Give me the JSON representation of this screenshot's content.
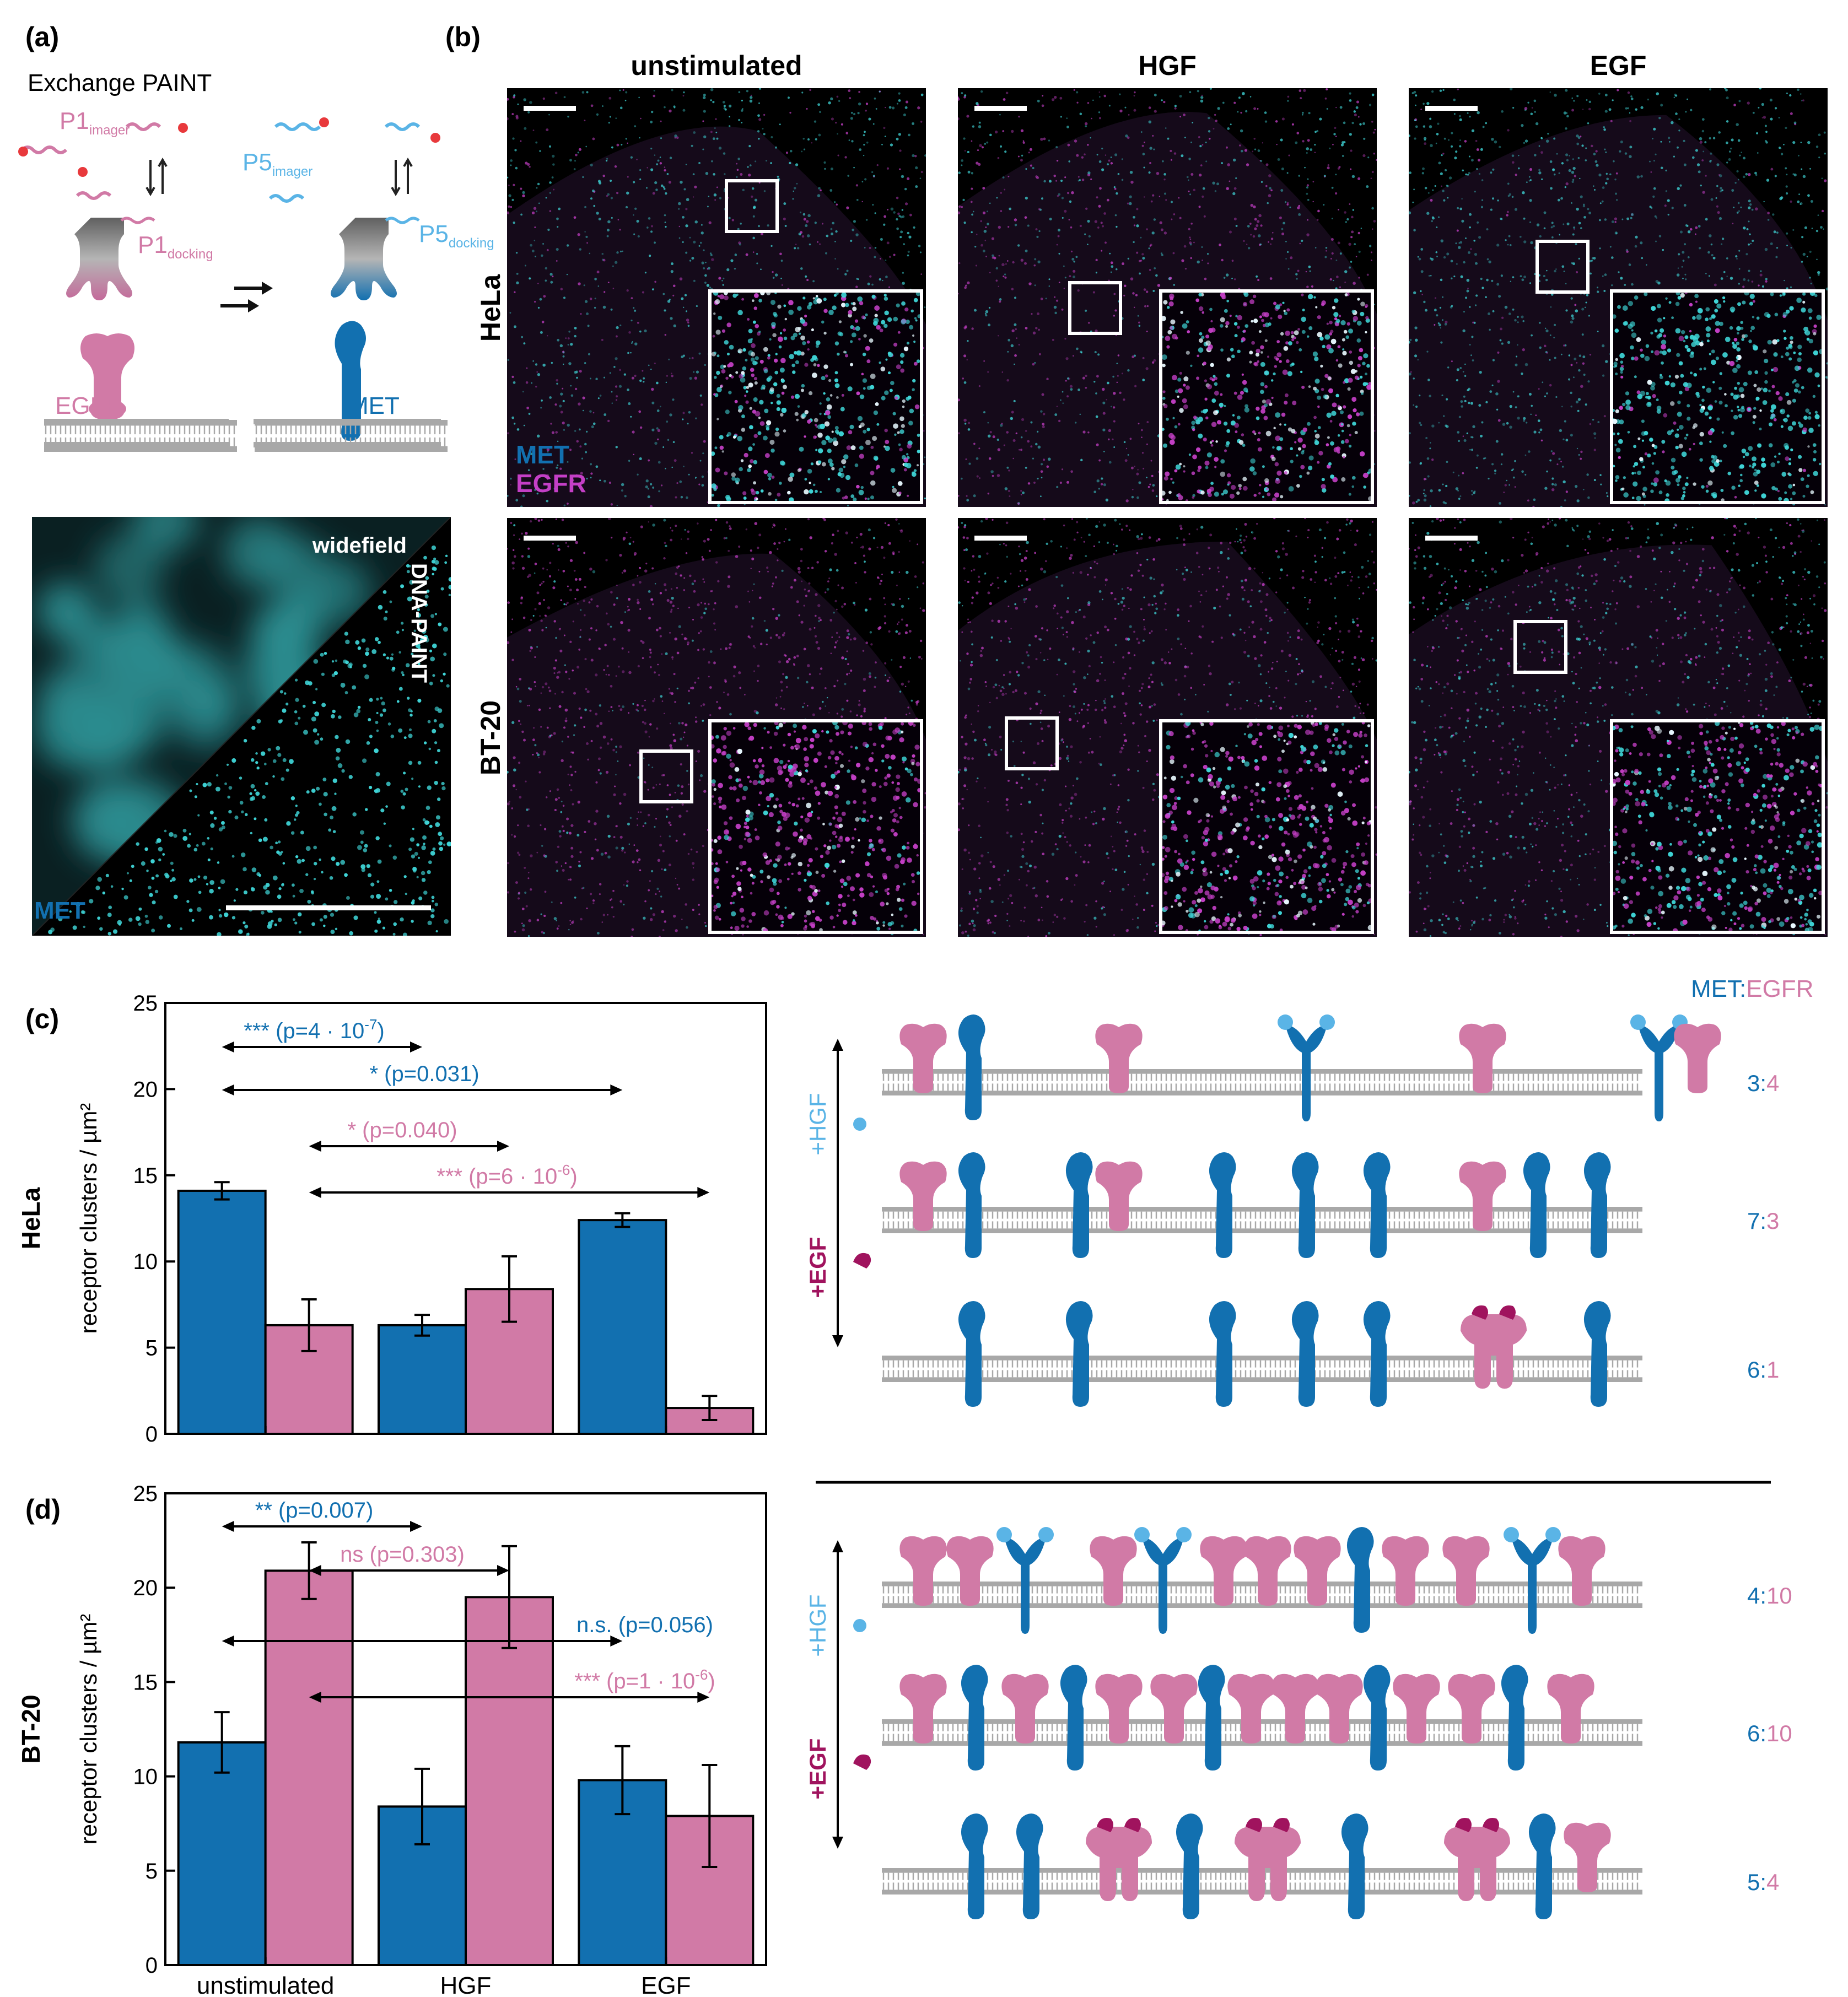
{
  "colors": {
    "met": "#1270b0",
    "egfr": "#d17aa6",
    "met_light": "#5ab4e6",
    "egf_ligand": "#a0135e",
    "membrane": "#a8a8a8",
    "cyan": "#3fd6d8",
    "magenta": "#c43fc6"
  },
  "panel_a": {
    "letter": "(a)",
    "title": "Exchange PAINT",
    "p1_imager": "P1",
    "p1_imager_sub": "imager",
    "p1_docking": "P1",
    "p1_docking_sub": "docking",
    "p5_imager": "P5",
    "p5_imager_sub": "imager",
    "p5_docking": "P5",
    "p5_docking_sub": "docking",
    "egfr_label": "EGFR",
    "met_label": "MET",
    "widefield_label": "widefield",
    "dnapaint_label": "DNA-PAINT",
    "met_channel_label": "MET"
  },
  "panel_b": {
    "letter": "(b)",
    "columns": [
      "unstimulated",
      "HGF",
      "EGF"
    ],
    "rows": [
      "HeLa",
      "BT-20"
    ],
    "legend_met": "MET",
    "legend_egfr": "EGFR"
  },
  "panel_c": {
    "letter": "(c)",
    "row_label": "HeLa",
    "ylabel": "receptor clusters / µm²",
    "sig": [
      {
        "stars": "***",
        "text": "(p=4 · 10",
        "exp": "-7",
        "close": ")",
        "color": "#1270b0"
      },
      {
        "stars": "*",
        "text": "(p=0.031)",
        "exp": "",
        "close": "",
        "color": "#1270b0"
      },
      {
        "stars": "*",
        "text": "(p=0.040)",
        "exp": "",
        "close": "",
        "color": "#d17aa6"
      },
      {
        "stars": "***",
        "text": "(p=6 · 10",
        "exp": "-6",
        "close": ")",
        "color": "#d17aa6"
      }
    ]
  },
  "panel_d": {
    "letter": "(d)",
    "row_label": "BT-20",
    "ylabel": "receptor clusters / µm²",
    "sig": [
      {
        "stars": "**",
        "text": "(p=0.007)",
        "exp": "",
        "close": "",
        "color": "#1270b0"
      },
      {
        "stars": "ns",
        "text": "(p=0.303)",
        "exp": "",
        "close": "",
        "color": "#d17aa6"
      },
      {
        "stars": "n.s.",
        "text": "(p=0.056)",
        "exp": "",
        "close": "",
        "color": "#1270b0"
      },
      {
        "stars": "***",
        "text": "(p=1 · 10",
        "exp": "-6",
        "close": ")",
        "color": "#d17aa6"
      }
    ]
  },
  "schematic": {
    "legend_met": "MET",
    "legend_sep": ":",
    "legend_egfr": "EGFR",
    "hgf_label": "+HGF",
    "egf_label": "+EGF",
    "hela_ratios": [
      [
        "3",
        "4"
      ],
      [
        "7",
        "3"
      ],
      [
        "6",
        "1"
      ]
    ],
    "bt20_ratios": [
      [
        "4",
        "10"
      ],
      [
        "6",
        "10"
      ],
      [
        "5",
        "4"
      ]
    ]
  },
  "chart_data": [
    {
      "type": "bar",
      "panel": "c",
      "title": "",
      "ylabel": "receptor clusters / µm²",
      "ylim": [
        0,
        25
      ],
      "yticks": [
        0,
        5,
        10,
        15,
        20,
        25
      ],
      "categories": [
        "unstimulated",
        "HGF",
        "EGF"
      ],
      "series": [
        {
          "name": "MET",
          "values": [
            14.1,
            6.3,
            12.4
          ],
          "errors": [
            0.5,
            0.6,
            0.4
          ]
        },
        {
          "name": "EGFR",
          "values": [
            6.3,
            8.4,
            1.5
          ],
          "errors": [
            1.5,
            1.9,
            0.7
          ]
        }
      ]
    },
    {
      "type": "bar",
      "panel": "d",
      "title": "",
      "ylabel": "receptor clusters / µm²",
      "ylim": [
        0,
        25
      ],
      "yticks": [
        0,
        5,
        10,
        15,
        20,
        25
      ],
      "categories": [
        "unstimulated",
        "HGF",
        "EGF"
      ],
      "series": [
        {
          "name": "MET",
          "values": [
            11.8,
            8.4,
            9.8
          ],
          "errors": [
            1.6,
            2.0,
            1.8
          ]
        },
        {
          "name": "EGFR",
          "values": [
            20.9,
            19.5,
            7.9
          ],
          "errors": [
            1.5,
            2.7,
            2.7
          ]
        }
      ]
    }
  ]
}
